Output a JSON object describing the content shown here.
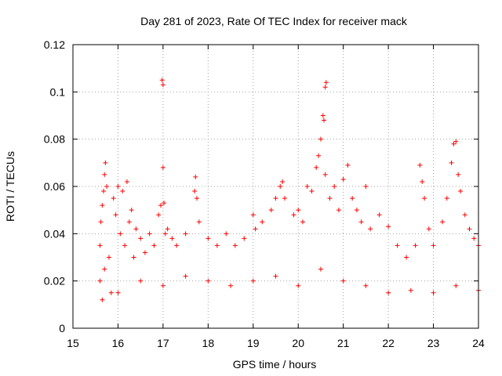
{
  "chart_data": {
    "type": "scatter",
    "title": "Day 281 of 2023, Rate Of TEC Index for receiver mack",
    "xlabel": "GPS time / hours",
    "ylabel": "ROTI / TECUs",
    "xlim": [
      15,
      24
    ],
    "ylim": [
      0,
      0.12
    ],
    "xticks": [
      "15",
      "16",
      "17",
      "18",
      "19",
      "20",
      "21",
      "22",
      "23",
      "24"
    ],
    "yticks": [
      "0",
      "0.02",
      "0.04",
      "0.06",
      "0.08",
      "0.1",
      "0.12"
    ],
    "grid": true,
    "marker": "+",
    "color": "#ff0000",
    "series": [
      {
        "points": [
          [
            15.6,
            0.035
          ],
          [
            15.62,
            0.045
          ],
          [
            15.65,
            0.052
          ],
          [
            15.68,
            0.058
          ],
          [
            15.7,
            0.065
          ],
          [
            15.72,
            0.07
          ],
          [
            15.75,
            0.06
          ],
          [
            15.6,
            0.02
          ],
          [
            15.65,
            0.012
          ],
          [
            15.7,
            0.025
          ],
          [
            15.8,
            0.03
          ],
          [
            15.85,
            0.015
          ],
          [
            15.9,
            0.055
          ],
          [
            15.95,
            0.048
          ],
          [
            16.0,
            0.06
          ],
          [
            16.05,
            0.04
          ],
          [
            16.1,
            0.058
          ],
          [
            16.15,
            0.035
          ],
          [
            16.2,
            0.062
          ],
          [
            16.25,
            0.045
          ],
          [
            16.3,
            0.05
          ],
          [
            16.35,
            0.03
          ],
          [
            16.4,
            0.042
          ],
          [
            16.5,
            0.038
          ],
          [
            16.6,
            0.032
          ],
          [
            16.7,
            0.04
          ],
          [
            16.8,
            0.035
          ],
          [
            16.9,
            0.048
          ],
          [
            16.95,
            0.052
          ],
          [
            16.98,
            0.105
          ],
          [
            17.0,
            0.103
          ],
          [
            17.0,
            0.068
          ],
          [
            17.02,
            0.053
          ],
          [
            17.05,
            0.04
          ],
          [
            17.1,
            0.042
          ],
          [
            17.2,
            0.038
          ],
          [
            17.3,
            0.035
          ],
          [
            17.5,
            0.04
          ],
          [
            17.7,
            0.058
          ],
          [
            17.72,
            0.064
          ],
          [
            17.75,
            0.055
          ],
          [
            17.8,
            0.045
          ],
          [
            18.0,
            0.038
          ],
          [
            18.2,
            0.035
          ],
          [
            18.4,
            0.04
          ],
          [
            18.6,
            0.035
          ],
          [
            18.8,
            0.038
          ],
          [
            19.0,
            0.048
          ],
          [
            19.05,
            0.042
          ],
          [
            19.2,
            0.045
          ],
          [
            19.4,
            0.05
          ],
          [
            19.5,
            0.055
          ],
          [
            19.6,
            0.06
          ],
          [
            19.65,
            0.062
          ],
          [
            19.7,
            0.055
          ],
          [
            19.9,
            0.048
          ],
          [
            20.0,
            0.05
          ],
          [
            20.1,
            0.045
          ],
          [
            20.2,
            0.06
          ],
          [
            20.3,
            0.058
          ],
          [
            20.4,
            0.068
          ],
          [
            20.45,
            0.073
          ],
          [
            20.5,
            0.08
          ],
          [
            20.55,
            0.09
          ],
          [
            20.57,
            0.088
          ],
          [
            20.6,
            0.102
          ],
          [
            20.62,
            0.104
          ],
          [
            20.6,
            0.065
          ],
          [
            20.7,
            0.055
          ],
          [
            20.8,
            0.06
          ],
          [
            20.9,
            0.05
          ],
          [
            21.0,
            0.063
          ],
          [
            21.1,
            0.069
          ],
          [
            21.2,
            0.055
          ],
          [
            21.3,
            0.05
          ],
          [
            21.4,
            0.045
          ],
          [
            21.5,
            0.06
          ],
          [
            21.6,
            0.042
          ],
          [
            21.8,
            0.048
          ],
          [
            22.0,
            0.043
          ],
          [
            22.2,
            0.035
          ],
          [
            22.4,
            0.03
          ],
          [
            22.6,
            0.035
          ],
          [
            22.7,
            0.069
          ],
          [
            22.75,
            0.062
          ],
          [
            22.8,
            0.055
          ],
          [
            22.9,
            0.042
          ],
          [
            23.0,
            0.035
          ],
          [
            23.2,
            0.045
          ],
          [
            23.3,
            0.055
          ],
          [
            23.4,
            0.07
          ],
          [
            23.45,
            0.078
          ],
          [
            23.5,
            0.079
          ],
          [
            23.55,
            0.065
          ],
          [
            23.6,
            0.058
          ],
          [
            23.7,
            0.048
          ],
          [
            23.8,
            0.042
          ],
          [
            23.9,
            0.038
          ],
          [
            24.0,
            0.035
          ],
          [
            16.0,
            0.015
          ],
          [
            16.5,
            0.02
          ],
          [
            17.0,
            0.018
          ],
          [
            17.5,
            0.022
          ],
          [
            18.0,
            0.02
          ],
          [
            18.5,
            0.018
          ],
          [
            19.0,
            0.02
          ],
          [
            19.5,
            0.022
          ],
          [
            20.0,
            0.018
          ],
          [
            20.5,
            0.025
          ],
          [
            21.0,
            0.02
          ],
          [
            21.5,
            0.018
          ],
          [
            22.0,
            0.015
          ],
          [
            22.5,
            0.016
          ],
          [
            23.0,
            0.015
          ],
          [
            23.5,
            0.018
          ],
          [
            24.0,
            0.016
          ]
        ]
      }
    ]
  }
}
